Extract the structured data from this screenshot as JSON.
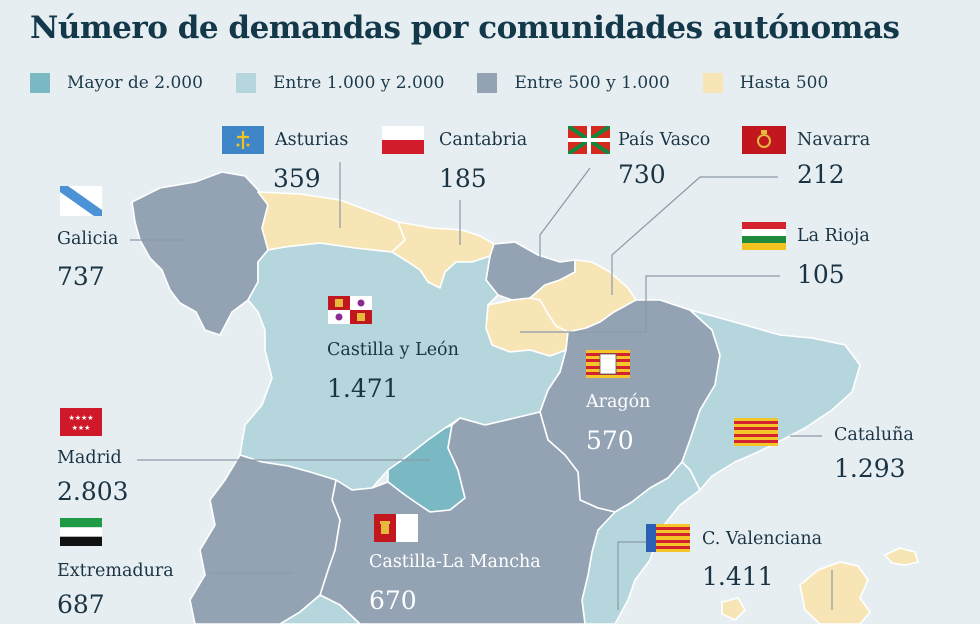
{
  "title": "Número de demandas por comunidades autónomas",
  "legend": [
    {
      "label": "Mayor de 2.000",
      "color": "#7ab8c4"
    },
    {
      "label": "Entre 1.000 y 2.000",
      "color": "#b5d6dd"
    },
    {
      "label": "Entre 500 y 1.000",
      "color": "#93a3b4"
    },
    {
      "label": "Hasta 500",
      "color": "#f8e5b6"
    }
  ],
  "regions": {
    "asturias": {
      "name": "Asturias",
      "value": "359"
    },
    "cantabria": {
      "name": "Cantabria",
      "value": "185"
    },
    "pais_vasco": {
      "name": "País Vasco",
      "value": "730"
    },
    "navarra": {
      "name": "Navarra",
      "value": "212"
    },
    "galicia": {
      "name": "Galicia",
      "value": "737"
    },
    "la_rioja": {
      "name": "La Rioja",
      "value": "105"
    },
    "castilla_leon": {
      "name": "Castilla y León",
      "value": "1.471"
    },
    "aragon": {
      "name": "Aragón",
      "value": "570"
    },
    "madrid": {
      "name": "Madrid",
      "value": "2.803"
    },
    "cataluna": {
      "name": "Cataluña",
      "value": "1.293"
    },
    "extremadura": {
      "name": "Extremadura",
      "value": "687"
    },
    "castilla_la_mancha": {
      "name": "Castilla-La Mancha",
      "value": "670"
    },
    "c_valenciana": {
      "name": "C. Valenciana",
      "value": "1.411"
    }
  }
}
